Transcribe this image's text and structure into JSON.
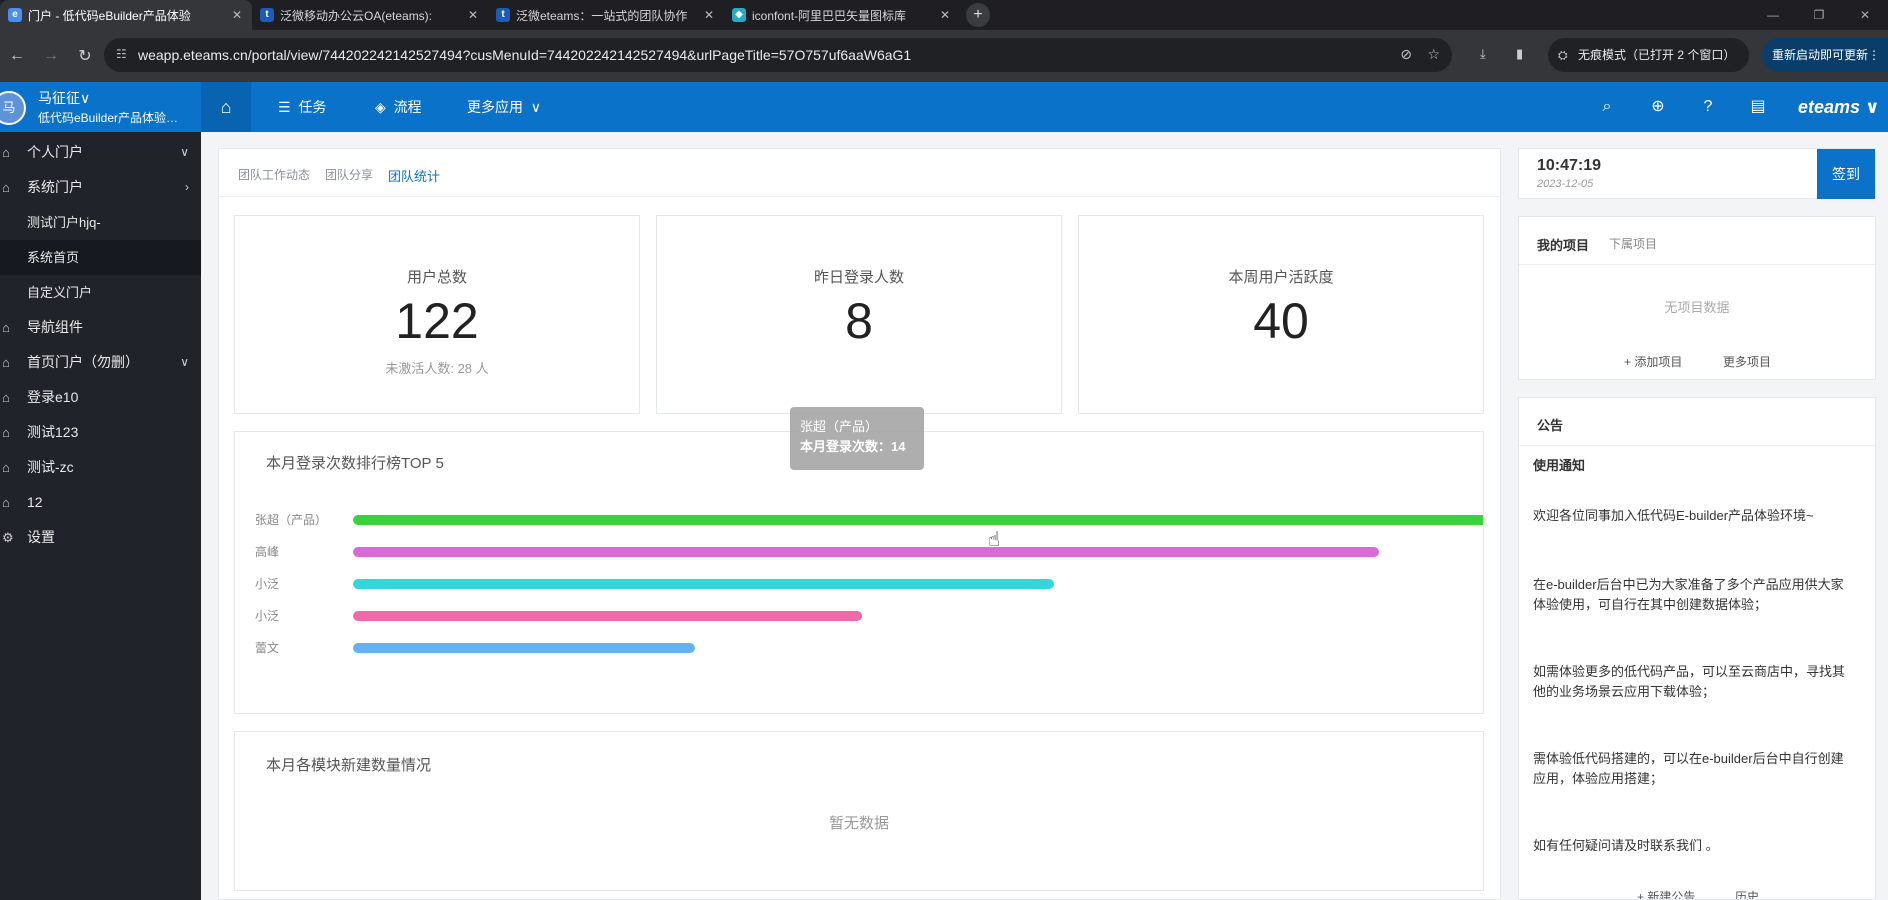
{
  "browser": {
    "tabs": [
      {
        "title": "门户 - 低代码eBuilder产品体验",
        "fav": "e",
        "color": "#4b8ef2"
      },
      {
        "title": "泛微移动办公云OA(eteams):",
        "fav": "t",
        "color": "#1e5bb5"
      },
      {
        "title": "泛微eteams：一站式的团队协作",
        "fav": "t",
        "color": "#1e5bb5"
      },
      {
        "title": "iconfont-阿里巴巴矢量图标库",
        "fav": "◆",
        "color": "#2aa8c4"
      }
    ],
    "url": "weapp.eteams.cn/portal/view/744202242142527494?cusMenuId=744202242142527494&urlPageTitle=57O757uf6aaW6aG1",
    "incognito": "无痕模式（已打开 2 个窗口）",
    "update": "重新启动即可更新"
  },
  "header": {
    "avatar": "马",
    "user_name": "马征征",
    "org_name": "低代码eBuilder产品体验环境",
    "menu": [
      {
        "label": "任务",
        "icon": "☰"
      },
      {
        "label": "流程",
        "icon": "◈"
      },
      {
        "label": "更多应用",
        "icon": ""
      }
    ],
    "brand": "eteams"
  },
  "sidebar": {
    "items": [
      {
        "label": "个人门户",
        "arrow": "∨",
        "icon": "⌂",
        "sub": false
      },
      {
        "label": "系统门户",
        "arrow": "›",
        "icon": "⌂",
        "sub": false
      },
      {
        "label": "测试门户hjq-",
        "arrow": "",
        "icon": "",
        "sub": true
      },
      {
        "label": "系统首页",
        "arrow": "",
        "icon": "",
        "sub": true,
        "selected": true
      },
      {
        "label": "自定义门户",
        "arrow": "",
        "icon": "",
        "sub": true
      },
      {
        "label": "导航组件",
        "arrow": "",
        "icon": "⌂",
        "sub": false
      },
      {
        "label": "首页门户（勿删）",
        "arrow": "∨",
        "icon": "⌂",
        "sub": false
      },
      {
        "label": "登录e10",
        "arrow": "",
        "icon": "⌂",
        "sub": false
      },
      {
        "label": "测试123",
        "arrow": "",
        "icon": "⌂",
        "sub": false
      },
      {
        "label": "测试-zc",
        "arrow": "",
        "icon": "⌂",
        "sub": false
      },
      {
        "label": "12",
        "arrow": "",
        "icon": "⌂",
        "sub": false
      },
      {
        "label": "设置",
        "arrow": "",
        "icon": "⚙",
        "sub": false
      }
    ]
  },
  "main": {
    "subtabs": [
      "团队工作动态",
      "团队分享",
      "团队统计"
    ],
    "stats": [
      {
        "title": "用户总数",
        "value": "122",
        "sub": "未激活人数: 28 人"
      },
      {
        "title": "昨日登录人数",
        "value": "8",
        "sub": ""
      },
      {
        "title": "本周用户活跃度",
        "value": "40",
        "sub": ""
      }
    ],
    "ranking_title": "本月登录次数排行榜TOP 5",
    "modules_title": "本月各模块新建数量情况",
    "no_data": "暂无数据",
    "tooltip": {
      "name": "张超（产品）",
      "label": "本月登录次数：14"
    }
  },
  "chart_data": {
    "type": "bar",
    "orientation": "horizontal",
    "title": "本月登录次数排行榜TOP 5",
    "categories": [
      "张超（产品）",
      "高峰",
      "小泛",
      "小泛",
      "蕾文"
    ],
    "values": [
      14,
      12.3,
      8.4,
      6.1,
      4.1
    ],
    "colors": [
      "#3ad33d",
      "#d86bd8",
      "#33d6d9",
      "#f06aa8",
      "#64b2f0"
    ],
    "xlim": [
      0,
      14
    ],
    "grid": false,
    "legend": "none"
  },
  "right": {
    "time": "10:47:19",
    "date": "2023-12-05",
    "signin": "签到",
    "project_tabs": [
      "我的项目",
      "下属项目"
    ],
    "no_project": "无项目数据",
    "add_project": "添加项目",
    "more_project": "更多项目",
    "notice_title": "公告",
    "notice_heading": "使用通知",
    "notice_lines": [
      "欢迎各位同事加入低代码E-builder产品体验环境~",
      "在e-builder后台中已为大家准备了多个产品应用供大家体验使用，可自行在其中创建数据体验；",
      "如需体验更多的低代码产品，可以至云商店中，寻找其他的业务场景云应用下载体验；",
      "需体验低代码搭建的，可以在e-builder后台中自行创建应用，体验应用搭建；",
      "如有任何疑问请及时联系我们 。"
    ],
    "new_notice": "新建公告",
    "history": "历史"
  }
}
